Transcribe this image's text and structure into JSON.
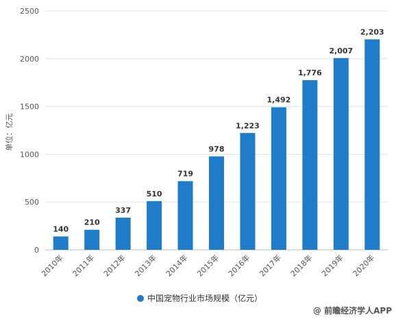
{
  "chart_data": {
    "type": "bar",
    "categories": [
      "2010年",
      "2011年",
      "2012年",
      "2013年",
      "2014年",
      "2015年",
      "2016年",
      "2017年",
      "2018年",
      "2019年",
      "2020年"
    ],
    "series": [
      {
        "name": "中国宠物行业市场规模（亿元）",
        "values": [
          140,
          210,
          337,
          510,
          719,
          978,
          1223,
          1492,
          1776,
          2007,
          2203
        ],
        "value_labels": [
          "140",
          "210",
          "337",
          "510",
          "719",
          "978",
          "1,223",
          "1,492",
          "1,776",
          "2,007",
          "2,203"
        ],
        "color": "#1f7cc8"
      }
    ],
    "ylabel": "单位：亿元",
    "ylim": [
      0,
      2500
    ],
    "yticks": [
      0,
      500,
      1000,
      1500,
      2000,
      2500
    ],
    "grid": true,
    "legend_position": "bottom-center"
  },
  "watermark": "@ 前瞻经济学人APP"
}
